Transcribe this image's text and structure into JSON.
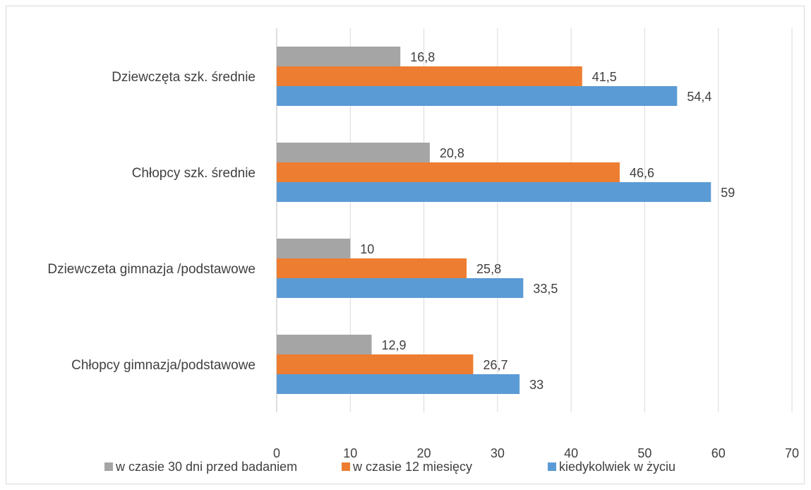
{
  "chart_data": {
    "type": "bar",
    "orientation": "horizontal",
    "categories": [
      "Chłopcy gimnazja/podstawowe",
      "Dziewczeta gimnazja /podstawowe",
      "Chłopcy szk. średnie",
      "Dziewczęta szk. średnie"
    ],
    "series": [
      {
        "name": "w czasie 30 dni przed badaniem",
        "color": "#a5a5a5",
        "values": [
          12.9,
          10,
          20.8,
          16.8
        ],
        "labels": [
          "12,9",
          "10",
          "20,8",
          "16,8"
        ]
      },
      {
        "name": "w czasie 12 miesięcy",
        "color": "#ed7d31",
        "values": [
          26.7,
          25.8,
          46.6,
          41.5
        ],
        "labels": [
          "26,7",
          "25,8",
          "46,6",
          "41,5"
        ]
      },
      {
        "name": "kiedykolwiek w życiu",
        "color": "#5b9bd5",
        "values": [
          33,
          33.5,
          59,
          54.4
        ],
        "labels": [
          "33",
          "33,5",
          "59",
          "54,4"
        ]
      }
    ],
    "xlim": [
      0,
      70
    ],
    "xticks": [
      0,
      10,
      20,
      30,
      40,
      50,
      60,
      70
    ],
    "title": "",
    "xlabel": "",
    "ylabel": "",
    "grid": "vertical",
    "legend_position": "bottom"
  }
}
